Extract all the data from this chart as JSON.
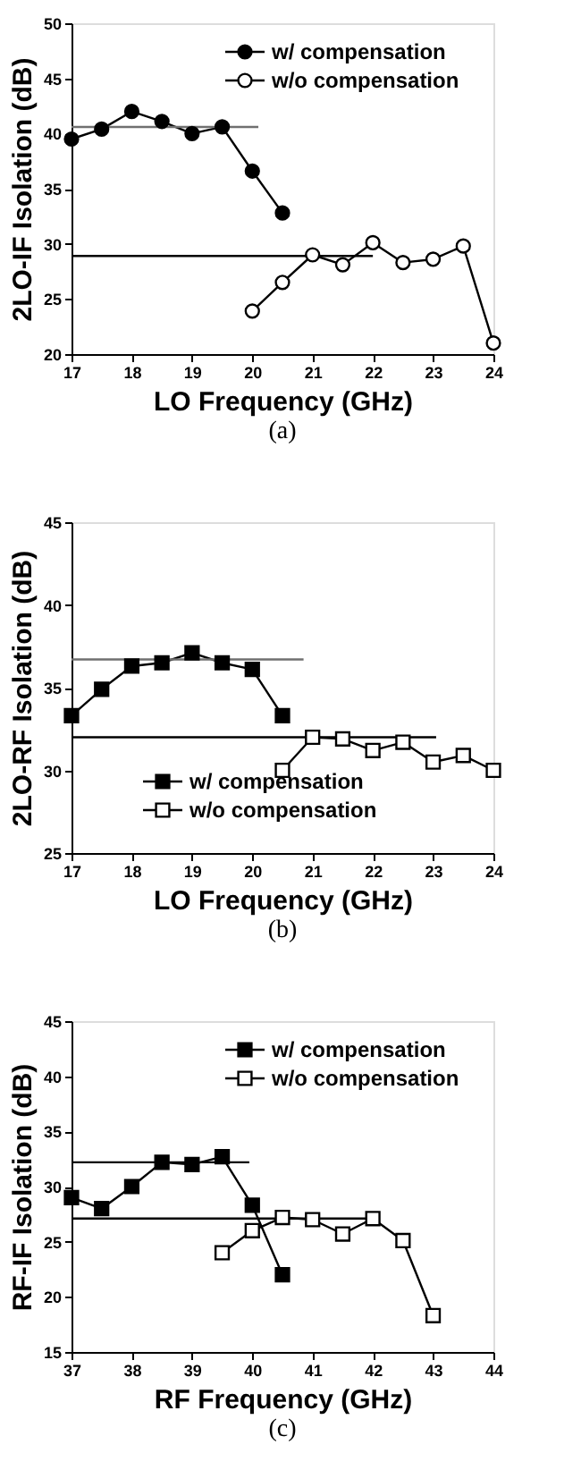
{
  "chart_data": [
    {
      "type": "line",
      "xlabel": "LO Frequency (GHz)",
      "ylabel": "2LO-IF Isolation (dB)",
      "annotations": [
        "(a)"
      ],
      "xlim": [
        17,
        24
      ],
      "xticks": [
        17,
        18,
        19,
        20,
        21,
        22,
        23,
        24
      ],
      "ylim": [
        20,
        50
      ],
      "yticks": [
        20,
        25,
        30,
        35,
        40,
        45,
        50
      ],
      "grid": false,
      "legend": "top right",
      "marker": "circle",
      "series": [
        {
          "name": "w/   compensation",
          "color": "#000000",
          "x": [
            17,
            17.5,
            18,
            18.5,
            19,
            19.5,
            20,
            20.5
          ],
          "values": [
            39.5,
            40.4,
            42,
            41.1,
            40,
            40.6,
            36.6,
            32.8
          ]
        },
        {
          "name": "w/o compensation",
          "color": "#000000",
          "x": [
            20,
            20.5,
            21,
            21.5,
            22,
            22.5,
            23,
            23.5,
            24
          ],
          "values": [
            23.9,
            26.5,
            29,
            28.1,
            30.1,
            28.3,
            28.6,
            29.8,
            21
          ]
        },
        {
          "type": "line",
          "color": "#707070",
          "marker": "none",
          "x": [
            17,
            20.1
          ],
          "values": [
            40.6,
            40.6
          ]
        },
        {
          "type": "line",
          "color": "#000000",
          "marker": "none",
          "x": [
            17,
            22
          ],
          "values": [
            28.9,
            28.9
          ]
        }
      ]
    },
    {
      "type": "line",
      "xlabel": "LO Frequency (GHz)",
      "ylabel": "2LO-RF Isolation (dB)",
      "annotations": [
        "(b)"
      ],
      "xlim": [
        17,
        24
      ],
      "xticks": [
        17,
        18,
        19,
        20,
        21,
        22,
        23,
        24
      ],
      "ylim": [
        25,
        45
      ],
      "yticks": [
        25,
        30,
        35,
        40,
        45
      ],
      "grid": false,
      "legend": "bottom left",
      "marker": "square",
      "series": [
        {
          "name": "w/   compensation",
          "color": "#000000",
          "x": [
            17,
            17.5,
            18,
            18.5,
            19,
            19.5,
            20,
            20.5
          ],
          "values": [
            33.3,
            34.9,
            36.3,
            36.5,
            37.1,
            36.5,
            36.1,
            33.3
          ]
        },
        {
          "name": "w/o compensation",
          "color": "#000000",
          "x": [
            20.5,
            21,
            21.5,
            22,
            22.5,
            23,
            23.5,
            24
          ],
          "values": [
            30,
            32,
            31.9,
            31.2,
            31.7,
            30.5,
            30.9,
            30
          ]
        },
        {
          "type": "line",
          "color": "#707070",
          "marker": "none",
          "x": [
            17,
            20.85
          ],
          "values": [
            36.7,
            36.7
          ]
        },
        {
          "type": "line",
          "color": "#000000",
          "marker": "none",
          "x": [
            17,
            23.05
          ],
          "values": [
            32,
            32
          ]
        }
      ]
    },
    {
      "type": "line",
      "xlabel": "RF Frequency (GHz)",
      "ylabel": "RF-IF Isolation (dB)",
      "annotations": [
        "(c)"
      ],
      "xlim": [
        37,
        44
      ],
      "xticks": [
        37,
        38,
        39,
        40,
        41,
        42,
        43,
        44
      ],
      "ylim": [
        15,
        45
      ],
      "yticks": [
        15,
        20,
        25,
        30,
        35,
        40,
        45
      ],
      "grid": false,
      "legend": "top right",
      "marker": "square",
      "series": [
        {
          "name": "w/   compensation",
          "color": "#000000",
          "x": [
            37,
            37.5,
            38,
            38.5,
            39,
            39.5,
            40,
            40.5
          ],
          "values": [
            29,
            28,
            30,
            32.2,
            32,
            32.7,
            28.3,
            22
          ]
        },
        {
          "name": "w/o compensation",
          "color": "#000000",
          "x": [
            39.5,
            40,
            40.5,
            41,
            41.5,
            42,
            42.5,
            43
          ],
          "values": [
            24,
            26,
            27.2,
            27,
            25.7,
            27.1,
            25.1,
            18.3
          ]
        },
        {
          "type": "line",
          "color": "#000000",
          "marker": "none",
          "x": [
            37,
            39.95
          ],
          "values": [
            32.2,
            32.2
          ]
        },
        {
          "type": "line",
          "color": "#000000",
          "marker": "none",
          "x": [
            37,
            42
          ],
          "values": [
            27.1,
            27.1
          ]
        }
      ]
    }
  ]
}
